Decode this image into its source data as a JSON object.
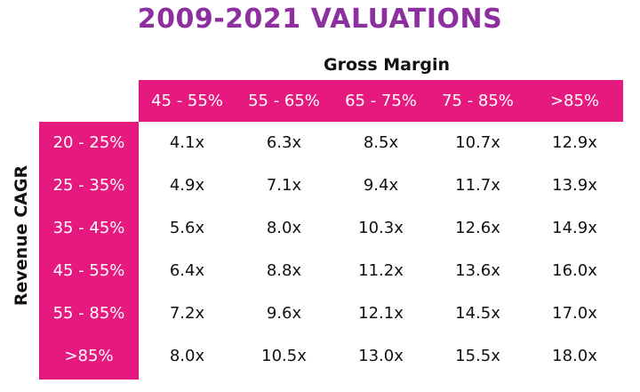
{
  "title": "2009-2021 VALUATIONS",
  "colors": {
    "accent": "#e6197f",
    "title": "#8e2fa0"
  },
  "chart_data": {
    "type": "table",
    "title": "2009-2021 VALUATIONS",
    "column_axis_label": "Gross Margin",
    "row_axis_label": "Revenue CAGR",
    "columns": [
      "45 - 55%",
      "55 - 65%",
      "65 - 75%",
      "75 - 85%",
      ">85%"
    ],
    "rows": [
      "20 - 25%",
      "25 - 35%",
      "35 - 45%",
      "45 - 55%",
      "55 - 85%",
      ">85%"
    ],
    "values": [
      [
        "4.1x",
        "6.3x",
        "8.5x",
        "10.7x",
        "12.9x"
      ],
      [
        "4.9x",
        "7.1x",
        "9.4x",
        "11.7x",
        "13.9x"
      ],
      [
        "5.6x",
        "8.0x",
        "10.3x",
        "12.6x",
        "14.9x"
      ],
      [
        "6.4x",
        "8.8x",
        "11.2x",
        "13.6x",
        "16.0x"
      ],
      [
        "7.2x",
        "9.6x",
        "12.1x",
        "14.5x",
        "17.0x"
      ],
      [
        "8.0x",
        "10.5x",
        "13.0x",
        "15.5x",
        "18.0x"
      ]
    ]
  }
}
